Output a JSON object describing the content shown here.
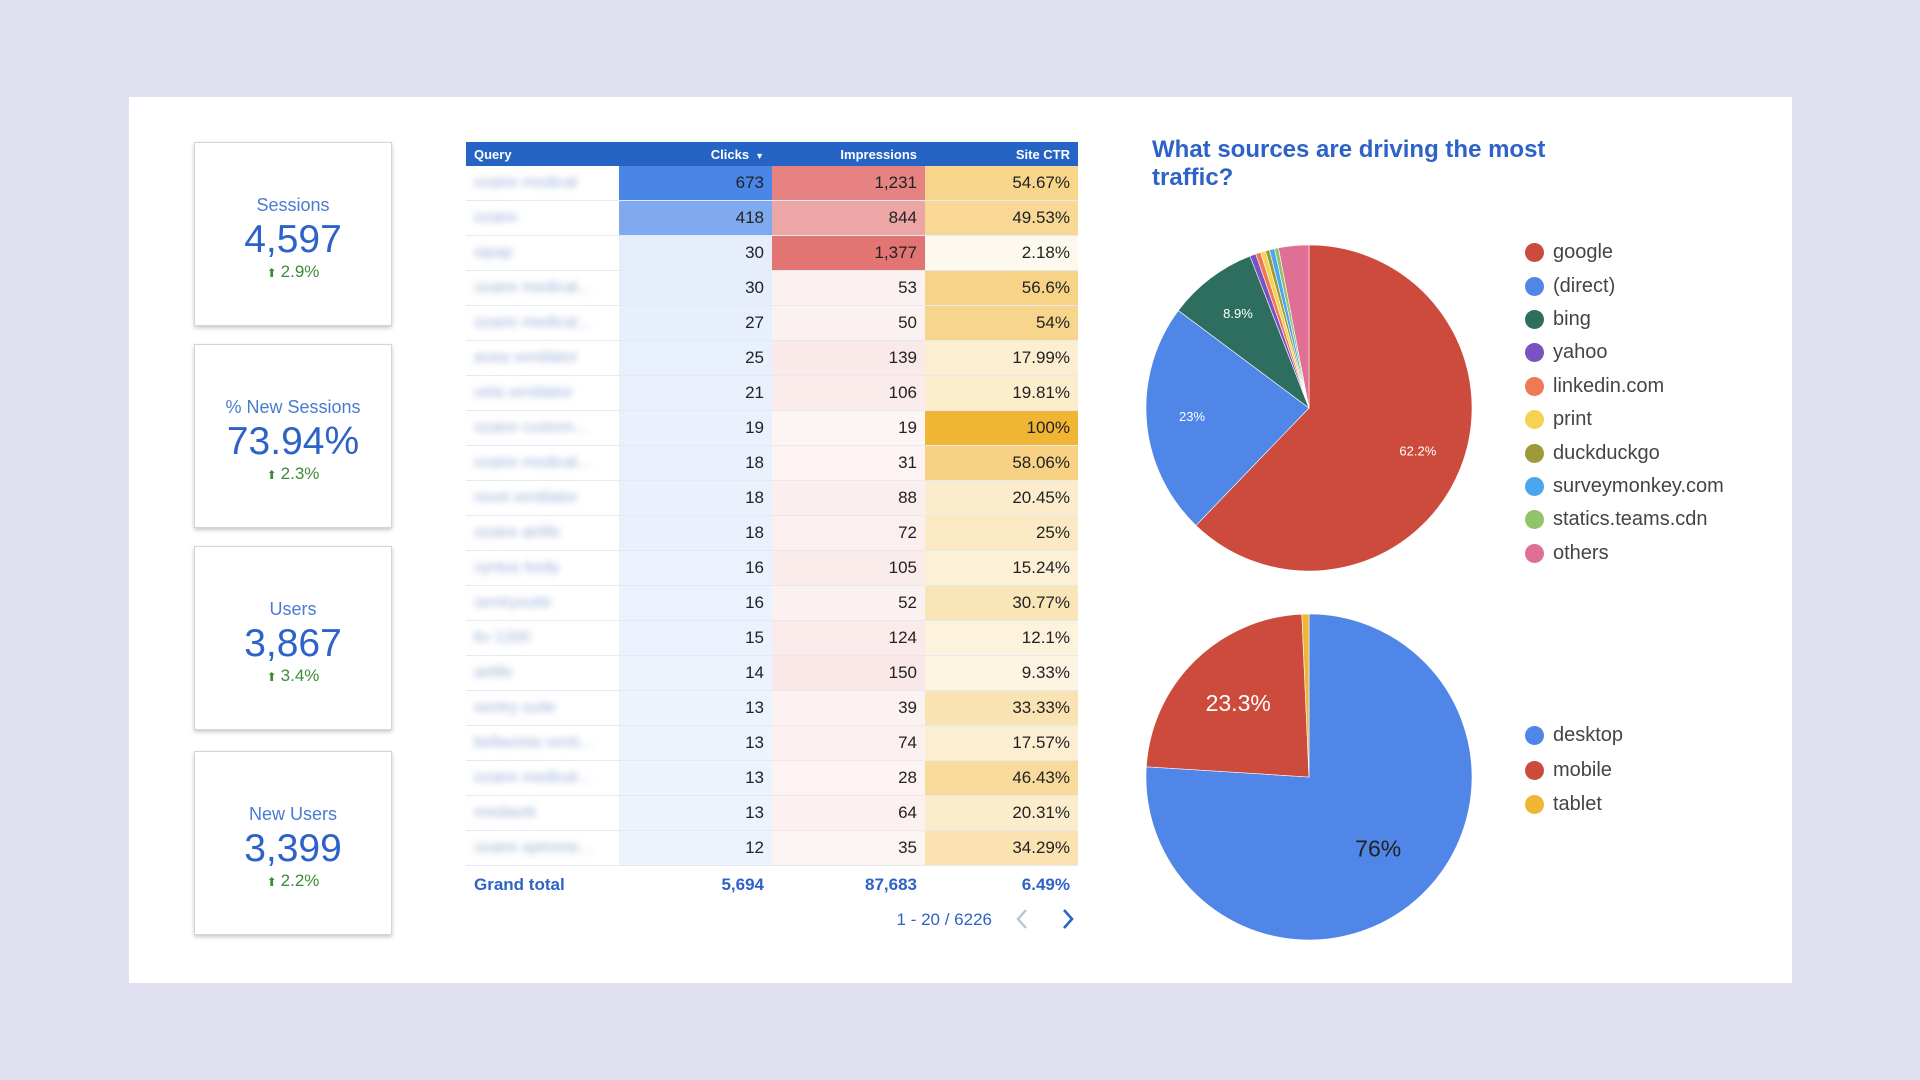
{
  "kpis": [
    {
      "label": "Sessions",
      "value": "4,597",
      "delta": "2.9%"
    },
    {
      "label": "% New Sessions",
      "value": "73.94%",
      "delta": "2.3%"
    },
    {
      "label": "Users",
      "value": "3,867",
      "delta": "3.4%"
    },
    {
      "label": "New Users",
      "value": "3,399",
      "delta": "2.2%"
    }
  ],
  "table": {
    "headers": {
      "query": "Query",
      "clicks": "Clicks",
      "clicks_sort_icon": "sort-down-icon",
      "impressions": "Impressions",
      "ctr": "Site CTR"
    },
    "rows": [
      {
        "query": "ozaire medical",
        "clicks": "673",
        "impressions": "1,231",
        "ctr": "54.67%"
      },
      {
        "query": "ozaire",
        "clicks": "418",
        "impressions": "844",
        "ctr": "49.53%"
      },
      {
        "query": "sipap",
        "clicks": "30",
        "impressions": "1,377",
        "ctr": "2.18%"
      },
      {
        "query": "ozaire medical...",
        "clicks": "30",
        "impressions": "53",
        "ctr": "56.6%"
      },
      {
        "query": "ozaire medical...",
        "clicks": "27",
        "impressions": "50",
        "ctr": "54%"
      },
      {
        "query": "avea ventilator",
        "clicks": "25",
        "impressions": "139",
        "ctr": "17.99%"
      },
      {
        "query": "vela ventilator",
        "clicks": "21",
        "impressions": "106",
        "ctr": "19.81%"
      },
      {
        "query": "ozaire custom...",
        "clicks": "19",
        "impressions": "19",
        "ctr": "100%"
      },
      {
        "query": "ozaire medical...",
        "clicks": "18",
        "impressions": "31",
        "ctr": "58.06%"
      },
      {
        "query": "revel ventilator",
        "clicks": "18",
        "impressions": "88",
        "ctr": "20.45%"
      },
      {
        "query": "ozaire airlife",
        "clicks": "18",
        "impressions": "72",
        "ctr": "25%"
      },
      {
        "query": "vyntus body",
        "clicks": "16",
        "impressions": "105",
        "ctr": "15.24%"
      },
      {
        "query": "sentrysuite",
        "clicks": "16",
        "impressions": "52",
        "ctr": "30.77%"
      },
      {
        "query": "ltv 1200",
        "clicks": "15",
        "impressions": "124",
        "ctr": "12.1%"
      },
      {
        "query": "airlife",
        "clicks": "14",
        "impressions": "150",
        "ctr": "9.33%"
      },
      {
        "query": "sentry suite",
        "clicks": "13",
        "impressions": "39",
        "ctr": "33.33%"
      },
      {
        "query": "bellavista venti...",
        "clicks": "13",
        "impressions": "74",
        "ctr": "17.57%"
      },
      {
        "query": "ozaire medical...",
        "clicks": "13",
        "impressions": "28",
        "ctr": "46.43%"
      },
      {
        "query": "medaork",
        "clicks": "13",
        "impressions": "64",
        "ctr": "20.31%"
      },
      {
        "query": "ozaire spirome...",
        "clicks": "12",
        "impressions": "35",
        "ctr": "34.29%"
      }
    ],
    "total": {
      "label": "Grand total",
      "clicks": "5,694",
      "impressions": "87,683",
      "ctr": "6.49%"
    },
    "pagination": {
      "text": "1 - 20 / 6226",
      "prev_icon": "chevron-left-icon",
      "next_icon": "chevron-right-icon"
    }
  },
  "colors": {
    "clicks": "#4a86e8",
    "impressions": "#e06666",
    "ctr": "#f1b534",
    "header": "#2563c4"
  },
  "chart_data": [
    {
      "type": "pie",
      "title": "What sources are driving the most traffic?",
      "legend_placement": "right",
      "slices": [
        {
          "name": "google",
          "value": 62.2,
          "color": "#cc4b3c",
          "label": "62.2%"
        },
        {
          "name": "(direct)",
          "value": 23,
          "color": "#4f86e8",
          "label": "23%"
        },
        {
          "name": "bing",
          "value": 8.9,
          "color": "#2e6e5f",
          "label": "8.9%"
        },
        {
          "name": "yahoo",
          "value": 0.6,
          "color": "#7b52c4",
          "label": ""
        },
        {
          "name": "linkedin.com",
          "value": 0.5,
          "color": "#ef7a52",
          "label": ""
        },
        {
          "name": "print",
          "value": 0.5,
          "color": "#f3d351",
          "label": ""
        },
        {
          "name": "duckduckgo",
          "value": 0.4,
          "color": "#9c9a3a",
          "label": ""
        },
        {
          "name": "surveymonkey.com",
          "value": 0.5,
          "color": "#4aa6ee",
          "label": ""
        },
        {
          "name": "statics.teams.cdn",
          "value": 0.4,
          "color": "#8fc46a",
          "label": ""
        },
        {
          "name": "others",
          "value": 3.0,
          "color": "#e06f96",
          "label": ""
        }
      ]
    },
    {
      "type": "pie",
      "title": "",
      "legend_placement": "right",
      "slices": [
        {
          "name": "desktop",
          "value": 76,
          "color": "#4f86e8",
          "label": "76%"
        },
        {
          "name": "mobile",
          "value": 23.3,
          "color": "#cc4b3c",
          "label": "23.3%"
        },
        {
          "name": "tablet",
          "value": 0.7,
          "color": "#f1b534",
          "label": ""
        }
      ]
    }
  ]
}
